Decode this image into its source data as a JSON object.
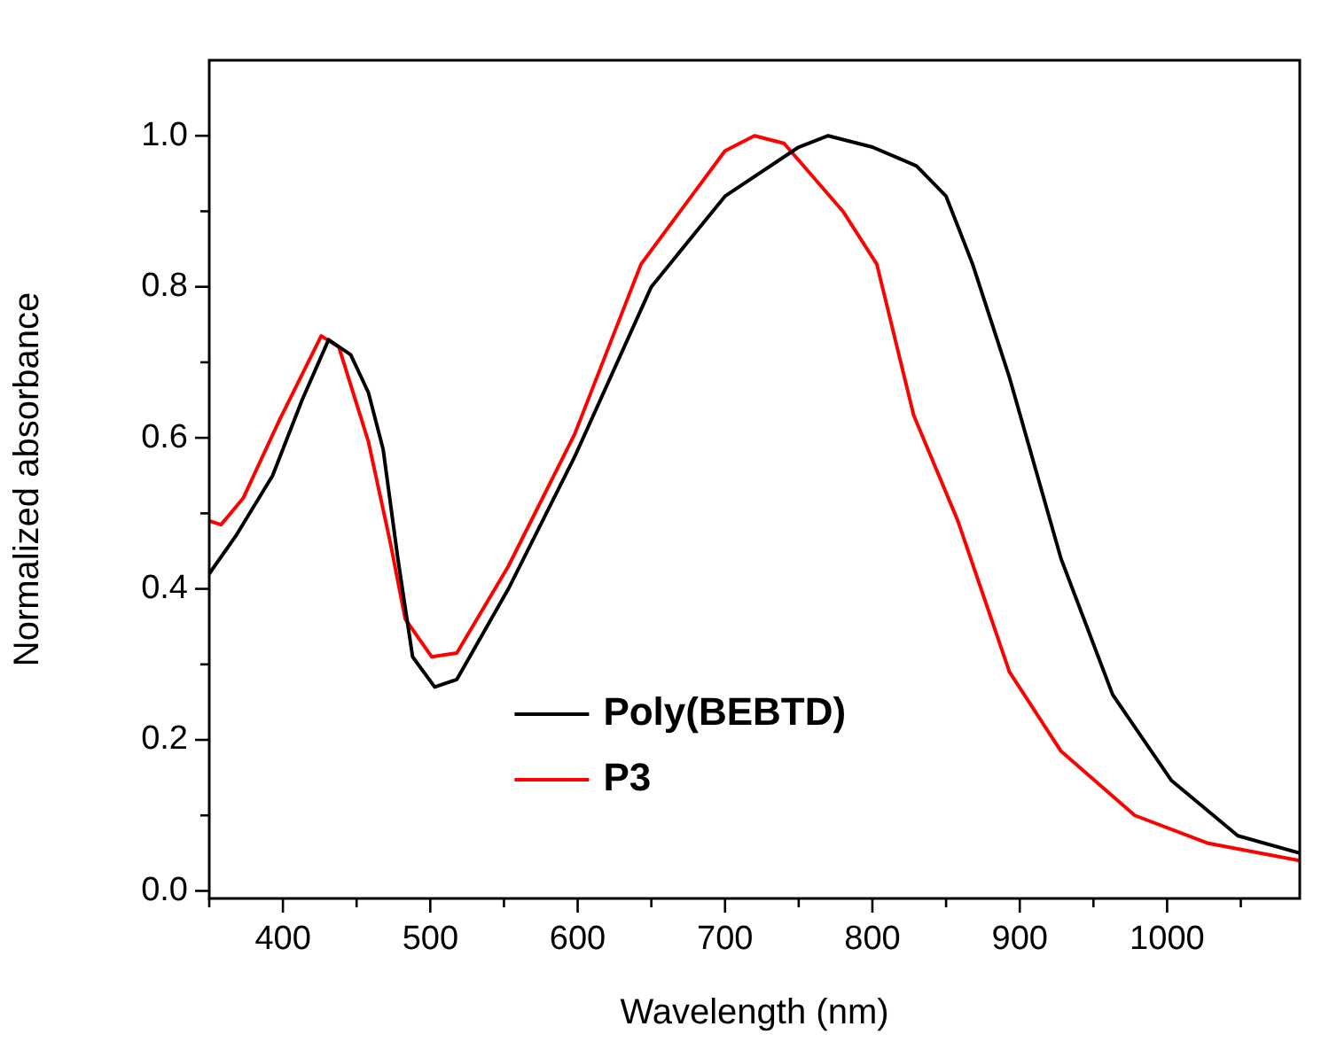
{
  "chart_data": {
    "type": "line",
    "xlabel": "Wavelength (nm)",
    "ylabel": "Normalized absorbance",
    "xlim": [
      350,
      1090
    ],
    "ylim": [
      -0.01,
      1.1
    ],
    "xticks": [
      {
        "value": 350,
        "label": null
      },
      400,
      {
        "value": 450,
        "label": null
      },
      500,
      {
        "value": 550,
        "label": null
      },
      600,
      {
        "value": 650,
        "label": null
      },
      700,
      {
        "value": 750,
        "label": null
      },
      800,
      {
        "value": 850,
        "label": null
      },
      900,
      {
        "value": 950,
        "label": null
      },
      1000,
      {
        "value": 1050,
        "label": null
      }
    ],
    "yticks": [
      {
        "value": 0,
        "label": "0.0"
      },
      {
        "value": 0.1,
        "label": null
      },
      0.2,
      {
        "value": 0.3,
        "label": null
      },
      0.4,
      {
        "value": 0.5,
        "label": null
      },
      0.6,
      {
        "value": 0.7,
        "label": null
      },
      0.8,
      {
        "value": 0.9,
        "label": null
      },
      {
        "value": 1,
        "label": "1.0"
      }
    ],
    "grid": false,
    "legend": "bottom",
    "marker": "none",
    "line_style": "solid",
    "series": [
      {
        "name": "Poly(BEBTD)",
        "color": "#000000",
        "x": [
          350,
          368,
          393,
          413,
          431,
          446,
          458,
          468,
          478,
          488,
          503,
          518,
          553,
          598,
          650,
          700,
          750,
          770,
          800,
          830,
          850,
          868,
          893,
          928,
          963,
          1003,
          1048,
          1090
        ],
        "values": [
          0.42,
          0.47,
          0.55,
          0.65,
          0.73,
          0.71,
          0.66,
          0.585,
          0.44,
          0.31,
          0.27,
          0.28,
          0.4,
          0.575,
          0.8,
          0.92,
          0.985,
          1.0,
          0.985,
          0.96,
          0.92,
          0.83,
          0.68,
          0.44,
          0.26,
          0.146,
          0.073,
          0.05
        ]
      },
      {
        "name": "P3",
        "color": "#ff0000",
        "x": [
          350,
          358,
          373,
          398,
          426,
          438,
          458,
          473,
          483,
          501,
          518,
          553,
          598,
          643,
          700,
          720,
          740,
          780,
          803,
          828,
          858,
          893,
          928,
          978,
          1028,
          1090
        ],
        "values": [
          0.49,
          0.485,
          0.52,
          0.625,
          0.735,
          0.72,
          0.595,
          0.46,
          0.36,
          0.31,
          0.315,
          0.43,
          0.605,
          0.83,
          0.98,
          1.0,
          0.99,
          0.9,
          0.83,
          0.63,
          0.49,
          0.29,
          0.185,
          0.1,
          0.063,
          0.04
        ]
      }
    ]
  }
}
